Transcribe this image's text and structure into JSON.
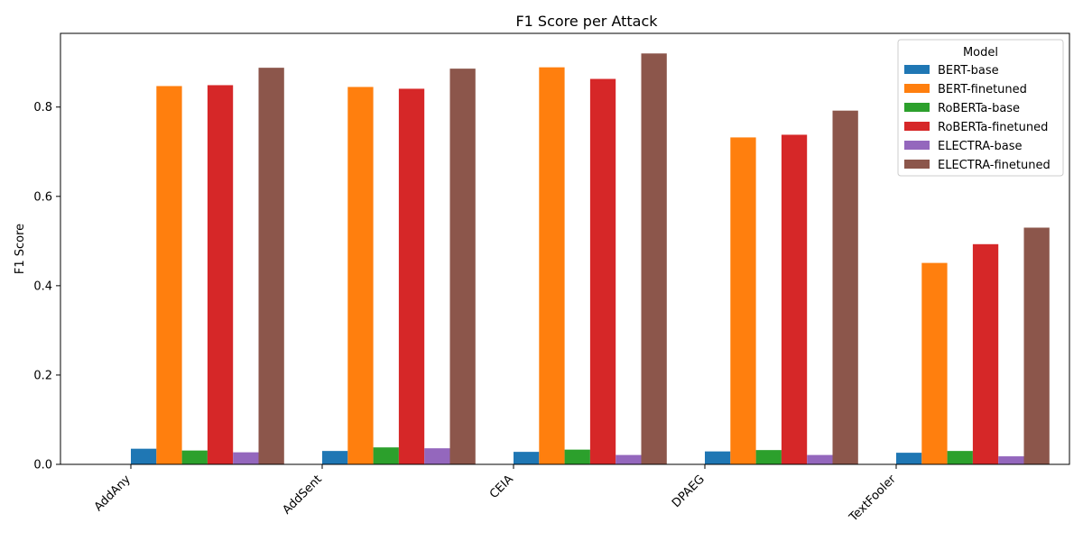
{
  "chart_data": {
    "type": "bar",
    "title": "F1 Score per Attack",
    "xlabel": "",
    "ylabel": "F1 Score",
    "ylim": [
      0,
      0.965
    ],
    "yticks": [
      "0.0",
      "0.2",
      "0.4",
      "0.6",
      "0.8"
    ],
    "categories": [
      "AddAny",
      "AddSent",
      "CEIA",
      "DPAEG",
      "TextFooler"
    ],
    "legend": {
      "title": "Model",
      "placement": "top-right"
    },
    "grid": false,
    "series": [
      {
        "name": "BERT-base",
        "color": "#1f77b4",
        "values": [
          0.035,
          0.03,
          0.028,
          0.029,
          0.026
        ]
      },
      {
        "name": "BERT-finetuned",
        "color": "#ff7f0e",
        "values": [
          0.847,
          0.845,
          0.889,
          0.732,
          0.451
        ]
      },
      {
        "name": "RoBERTa-base",
        "color": "#2ca02c",
        "values": [
          0.031,
          0.038,
          0.033,
          0.032,
          0.03
        ]
      },
      {
        "name": "RoBERTa-finetuned",
        "color": "#d62728",
        "values": [
          0.849,
          0.841,
          0.863,
          0.738,
          0.493
        ]
      },
      {
        "name": "ELECTRA-base",
        "color": "#9467bd",
        "values": [
          0.027,
          0.036,
          0.021,
          0.021,
          0.018
        ]
      },
      {
        "name": "ELECTRA-finetuned",
        "color": "#8c564b",
        "values": [
          0.888,
          0.886,
          0.92,
          0.792,
          0.53
        ]
      }
    ]
  }
}
